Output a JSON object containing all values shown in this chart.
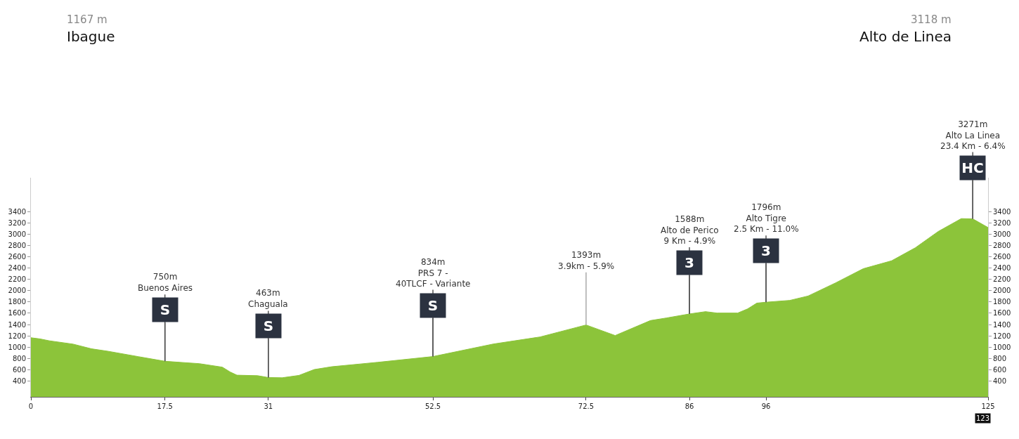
{
  "chart_data": {
    "type": "area",
    "color": "#8cc43a",
    "x": [
      0,
      1.2,
      2.4,
      5.5,
      7.9,
      10,
      14,
      17.5,
      22,
      25,
      26,
      26.9,
      29.6,
      31,
      32.8,
      35,
      37,
      39.3,
      45.3,
      52.5,
      60.4,
      66.5,
      72.5,
      76.3,
      80.9,
      83,
      86,
      88.1,
      89.6,
      92.3,
      93.6,
      94.8,
      96,
      99.1,
      101.5,
      105.1,
      108.7,
      112.4,
      115.5,
      118.5,
      121.5,
      123,
      125
    ],
    "values": [
      1167,
      1146,
      1113,
      1054,
      971,
      929,
      833,
      750,
      708,
      646,
      562,
      504,
      495,
      463,
      458,
      500,
      604,
      654,
      732,
      834,
      1056,
      1181,
      1393,
      1206,
      1471,
      1517,
      1588,
      1629,
      1604,
      1604,
      1678,
      1780,
      1796,
      1828,
      1906,
      2139,
      2389,
      2529,
      2760,
      3049,
      3276,
      3271,
      3118
    ],
    "xlim": [
      0,
      125
    ],
    "xticks": [
      0,
      17.5,
      31,
      52.5,
      72.5,
      86,
      96,
      125
    ],
    "ylim": [
      120,
      4000
    ],
    "yticks": [
      400,
      600,
      800,
      1000,
      1200,
      1400,
      1600,
      1800,
      2000,
      2200,
      2400,
      2600,
      2800,
      3000,
      3200,
      3400
    ],
    "y2lim": [
      120,
      4000
    ],
    "y2ticks": [
      400,
      600,
      800,
      1000,
      1200,
      1400,
      1600,
      1800,
      2000,
      2200,
      2400,
      2600,
      2800,
      3000,
      3200,
      3400
    ],
    "marker": "none",
    "annotations": [
      "1167 m",
      "Ibague",
      "3118 m",
      "Alto de Linea",
      {
        "text": "750m\nBuenos Aires",
        "x": 17.5,
        "y": 750
      },
      {
        "text": "S",
        "x": 17.5,
        "y": 750
      },
      {
        "text": "463m\nChaguala",
        "x": 31,
        "y": 463
      },
      {
        "text": "S",
        "x": 31,
        "y": 463
      },
      {
        "text": "834m\nPRS 7 -\n40TLCF - Variante",
        "x": 52.5,
        "y": 834
      },
      {
        "text": "S",
        "x": 52.5,
        "y": 834
      },
      {
        "text": "1393m\n3.9km - 5.9%",
        "x": 72.5,
        "y": 1393
      },
      {
        "text": "1588m\nAlto de Perico\n9 Km - 4.9%",
        "x": 86,
        "y": 1588
      },
      {
        "text": "3",
        "x": 86,
        "y": 1588
      },
      {
        "text": "1796m\nAlto Tigre\n2.5 Km - 11.0%",
        "x": 96,
        "y": 1796
      },
      {
        "text": "3",
        "x": 96,
        "y": 1796
      },
      {
        "text": "3271m\nAlto La Linea\n23.4 Km - 6.4%",
        "x": 123,
        "y": 3271
      },
      {
        "text": "HC",
        "x": 123,
        "y": 3271
      },
      "123"
    ]
  }
}
